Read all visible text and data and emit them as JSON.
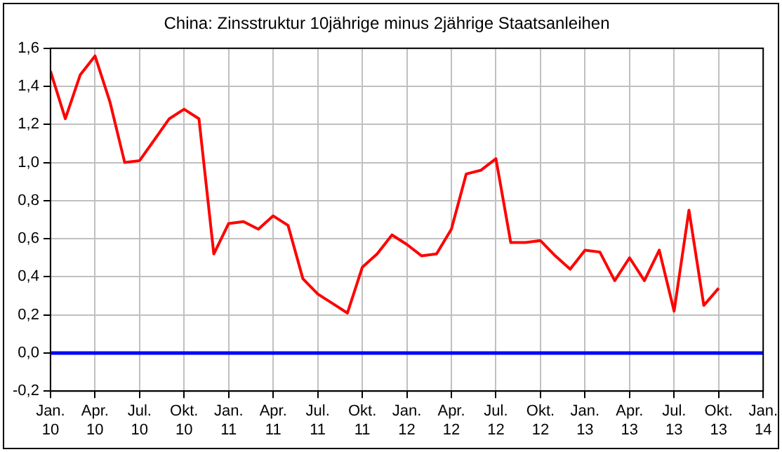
{
  "chart_data": {
    "type": "line",
    "title": "China: Zinsstruktur 10jährige minus 2jährige Staatsanleihen",
    "x": [
      "2010-01",
      "2010-02",
      "2010-03",
      "2010-04",
      "2010-05",
      "2010-06",
      "2010-07",
      "2010-08",
      "2010-09",
      "2010-10",
      "2010-11",
      "2010-12",
      "2011-01",
      "2011-02",
      "2011-03",
      "2011-04",
      "2011-05",
      "2011-06",
      "2011-07",
      "2011-08",
      "2011-09",
      "2011-10",
      "2011-11",
      "2011-12",
      "2012-01",
      "2012-02",
      "2012-03",
      "2012-04",
      "2012-05",
      "2012-06",
      "2012-07",
      "2012-08",
      "2012-09",
      "2012-10",
      "2012-11",
      "2012-12",
      "2013-01",
      "2013-02",
      "2013-03",
      "2013-04",
      "2013-05",
      "2013-06",
      "2013-07",
      "2013-08",
      "2013-09",
      "2013-10"
    ],
    "series": [
      {
        "color": "#ff0000",
        "values": [
          1.48,
          1.23,
          1.46,
          1.56,
          1.32,
          1.0,
          1.01,
          1.12,
          1.23,
          1.28,
          1.23,
          0.52,
          0.68,
          0.69,
          0.65,
          0.72,
          0.67,
          0.39,
          0.31,
          0.26,
          0.21,
          0.45,
          0.52,
          0.62,
          0.57,
          0.51,
          0.52,
          0.65,
          0.94,
          0.96,
          1.02,
          0.58,
          0.58,
          0.59,
          0.51,
          0.44,
          0.54,
          0.53,
          0.38,
          0.5,
          0.38,
          0.54,
          0.22,
          0.75,
          0.25,
          0.34
        ]
      }
    ],
    "xlim": [
      "2010-01",
      "2014-01"
    ],
    "xticks": [
      {
        "value": "2010-01",
        "label": "Jan. 10"
      },
      {
        "value": "2010-04",
        "label": "Apr. 10"
      },
      {
        "value": "2010-07",
        "label": "Jul. 10"
      },
      {
        "value": "2010-10",
        "label": "Okt. 10"
      },
      {
        "value": "2011-01",
        "label": "Jan. 11"
      },
      {
        "value": "2011-04",
        "label": "Apr. 11"
      },
      {
        "value": "2011-07",
        "label": "Jul. 11"
      },
      {
        "value": "2011-10",
        "label": "Okt. 11"
      },
      {
        "value": "2012-01",
        "label": "Jan. 12"
      },
      {
        "value": "2012-04",
        "label": "Apr. 12"
      },
      {
        "value": "2012-07",
        "label": "Jul. 12"
      },
      {
        "value": "2012-10",
        "label": "Okt. 12"
      },
      {
        "value": "2013-01",
        "label": "Jan. 13"
      },
      {
        "value": "2013-04",
        "label": "Apr. 13"
      },
      {
        "value": "2013-07",
        "label": "Jul. 13"
      },
      {
        "value": "2013-10",
        "label": "Okt. 13"
      },
      {
        "value": "2014-01",
        "label": "Jan. 14"
      }
    ],
    "ylim": [
      -0.2,
      1.6
    ],
    "yticks": [
      {
        "value": -0.2,
        "label": "-0,2"
      },
      {
        "value": 0,
        "label": "0,0"
      },
      {
        "value": 0.2,
        "label": "0,2"
      },
      {
        "value": 0.4,
        "label": "0,4"
      },
      {
        "value": 0.6,
        "label": "0,6"
      },
      {
        "value": 0.8,
        "label": "0,8"
      },
      {
        "value": 1.0,
        "label": "1,0"
      },
      {
        "value": 1.2,
        "label": "1,2"
      },
      {
        "value": 1.4,
        "label": "1,4"
      },
      {
        "value": 1.6,
        "label": "1,6"
      }
    ],
    "ref_lines": [
      {
        "axis": "y",
        "value": 0,
        "color": "#0000ff"
      }
    ],
    "grid": true,
    "legend": false,
    "marker": "none",
    "line_style": "solid"
  }
}
